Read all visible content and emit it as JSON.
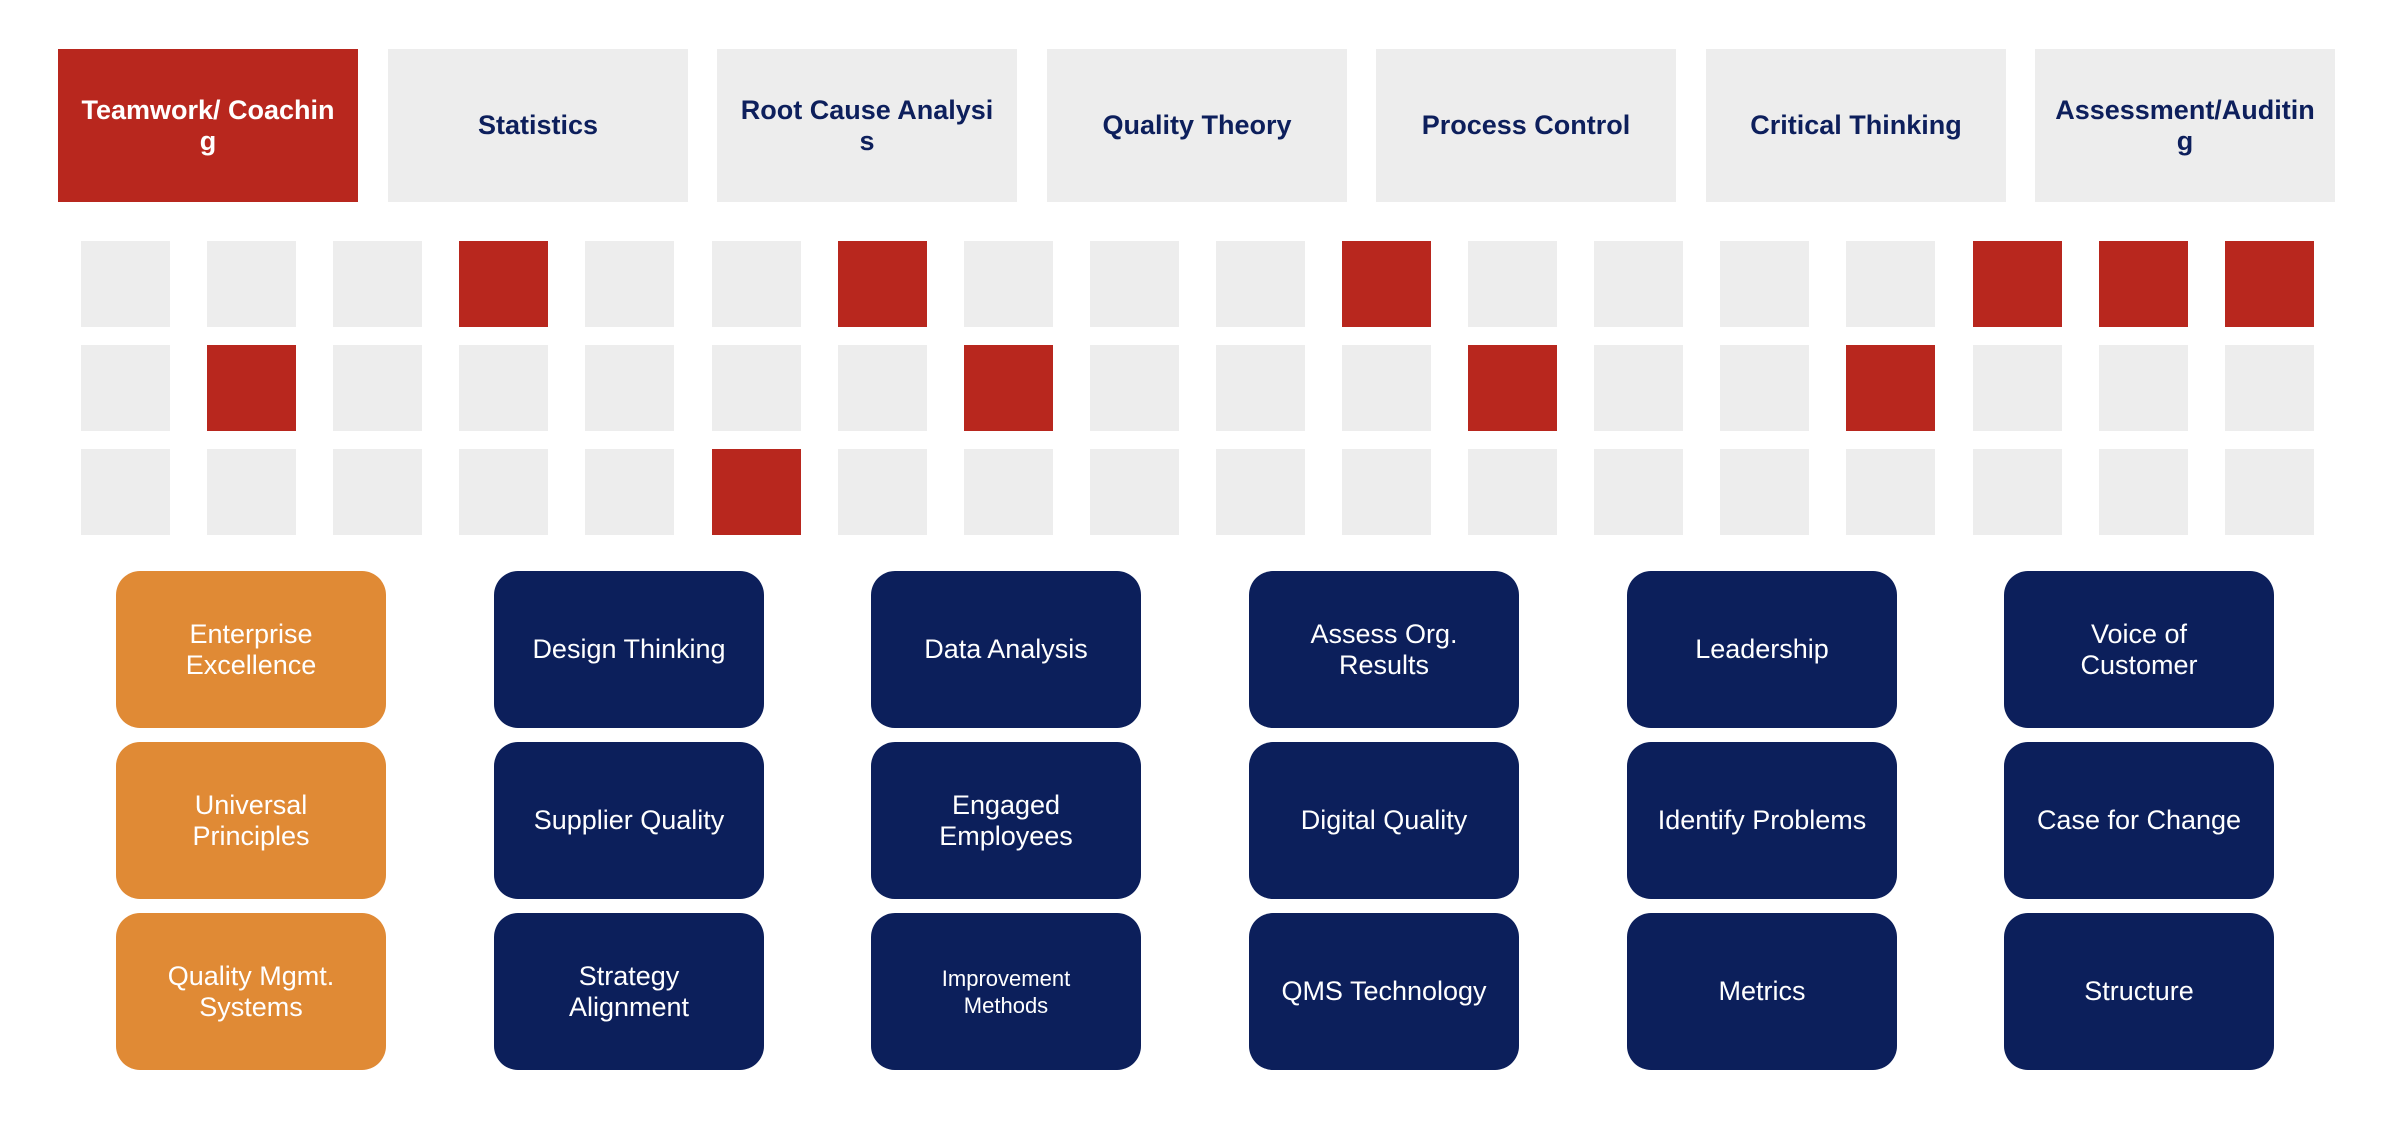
{
  "tabs": [
    {
      "label": "Teamwork/ Coaching",
      "active": true
    },
    {
      "label": "Statistics",
      "active": false
    },
    {
      "label": "Root Cause Analysis",
      "active": false
    },
    {
      "label": "Quality Theory",
      "active": false
    },
    {
      "label": "Process Control",
      "active": false
    },
    {
      "label": "Critical Thinking",
      "active": false
    },
    {
      "label": "Assessment/Auditing",
      "active": false
    }
  ],
  "matrix": {
    "rows": 3,
    "cols": 18,
    "highlighted": [
      [
        3,
        6,
        10,
        15,
        16,
        17
      ],
      [
        1,
        7,
        11,
        14
      ],
      [
        5
      ]
    ]
  },
  "cards": [
    [
      "Enterprise Excellence",
      "Universal Principles",
      "Quality Mgmt. Systems"
    ],
    [
      "Design Thinking",
      "Supplier Quality",
      "Strategy Alignment"
    ],
    [
      "Data Analysis",
      "Engaged Employees",
      "Improvement Methods"
    ],
    [
      "Assess Org. Results",
      "Digital Quality",
      "QMS Technology"
    ],
    [
      "Leadership",
      "Identify Problems",
      "Metrics"
    ],
    [
      "Voice of Customer",
      "Case for Change",
      "Structure"
    ]
  ],
  "colors": {
    "active_red": "#b8271e",
    "navy": "#0c1f5b",
    "orange": "#e08a35",
    "inactive_gray": "#ededed"
  }
}
